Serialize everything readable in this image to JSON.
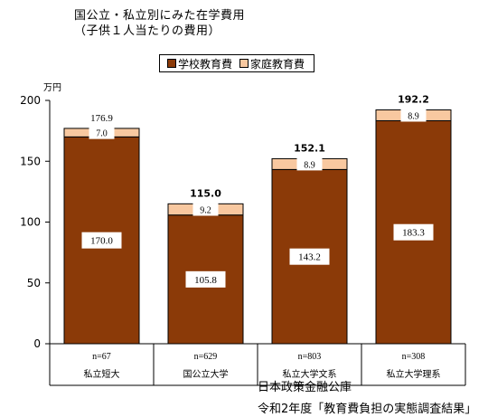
{
  "page_title": "国公立・私立別にみた在学費用",
  "page_subtitle": "（子供１人当たりの費用）",
  "source_lines": [
    "日本政策金融公庫",
    "令和2年度「教育費負担の実態調査結果」"
  ],
  "colors": {
    "school": "#8B3A08",
    "home": "#F8C8A0"
  },
  "chart_data": {
    "type": "bar",
    "stacked": true,
    "categories": [
      "私立短大",
      "国公立大学",
      "私立大学文系",
      "私立大学理系"
    ],
    "sample_sizes": [
      "n=67",
      "n=629",
      "n=803",
      "n=308"
    ],
    "series": [
      {
        "name": "学校教育費",
        "values": [
          170.0,
          105.8,
          143.2,
          183.3
        ],
        "labels": [
          "170.0",
          "105.8",
          "143.2",
          "183.3"
        ]
      },
      {
        "name": "家庭教育費",
        "values": [
          7.0,
          9.2,
          8.9,
          8.9
        ],
        "labels": [
          "7.0",
          "9.2",
          "8.9",
          "8.9"
        ]
      }
    ],
    "totals": [
      176.9,
      115.0,
      152.1,
      192.2
    ],
    "total_labels": [
      "176.9",
      "115.0",
      "152.1",
      "192.2"
    ],
    "total_bold": [
      false,
      true,
      true,
      true
    ],
    "yunit": "万円",
    "ylim": [
      0,
      200
    ],
    "yticks": [
      0,
      50,
      100,
      150,
      200
    ],
    "ytick_labels": [
      "0",
      "50",
      "100",
      "150",
      "200"
    ],
    "grid": false,
    "legend_position": "top-center"
  }
}
